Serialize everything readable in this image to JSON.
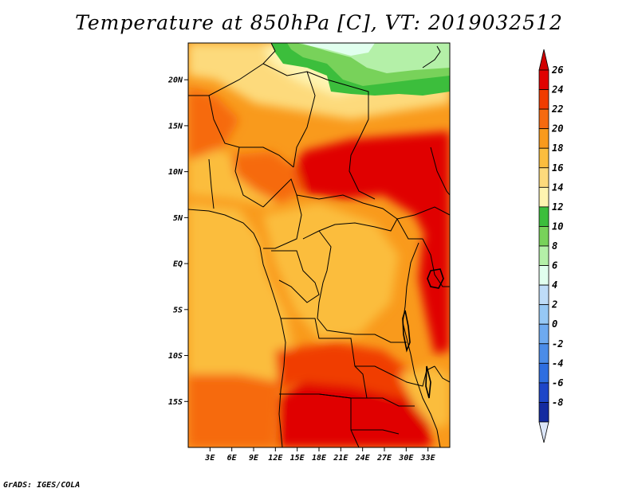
{
  "title": "Temperature at 850hPa [C], VT: 2019032512",
  "credit": "GrADS: IGES/COLA",
  "map": {
    "lon_range": [
      0,
      36
    ],
    "lat_range": [
      -20,
      24
    ],
    "lon_ticks": [
      {
        "value": 3,
        "label": "3E"
      },
      {
        "value": 6,
        "label": "6E"
      },
      {
        "value": 9,
        "label": "9E"
      },
      {
        "value": 12,
        "label": "12E"
      },
      {
        "value": 15,
        "label": "15E"
      },
      {
        "value": 18,
        "label": "18E"
      },
      {
        "value": 21,
        "label": "21E"
      },
      {
        "value": 24,
        "label": "24E"
      },
      {
        "value": 27,
        "label": "27E"
      },
      {
        "value": 30,
        "label": "30E"
      },
      {
        "value": 33,
        "label": "33E"
      }
    ],
    "lat_ticks": [
      {
        "value": 20,
        "label": "20N"
      },
      {
        "value": 15,
        "label": "15N"
      },
      {
        "value": 10,
        "label": "10N"
      },
      {
        "value": 5,
        "label": "5N"
      },
      {
        "value": 0,
        "label": "EQ"
      },
      {
        "value": -5,
        "label": "5S"
      },
      {
        "value": -10,
        "label": "10S"
      },
      {
        "value": -15,
        "label": "15S"
      }
    ]
  },
  "colorbar": {
    "levels": [
      {
        "label": "26",
        "color": "#e00000"
      },
      {
        "label": "24",
        "color": "#f03c00"
      },
      {
        "label": "22",
        "color": "#f66a10"
      },
      {
        "label": "20",
        "color": "#f99a1c"
      },
      {
        "label": "18",
        "color": "#fbbd3e"
      },
      {
        "label": "16",
        "color": "#fdda7c"
      },
      {
        "label": "14",
        "color": "#fef4b0"
      },
      {
        "label": "12",
        "color": "#3cbe3c"
      },
      {
        "label": "10",
        "color": "#78d25a"
      },
      {
        "label": "8",
        "color": "#b4f0a8"
      },
      {
        "label": "6",
        "color": "#e1ffee"
      },
      {
        "label": "4",
        "color": "#bedcf8"
      },
      {
        "label": "2",
        "color": "#96c8f5"
      },
      {
        "label": "0",
        "color": "#6eaaf0"
      },
      {
        "label": "-2",
        "color": "#4b8ce8"
      },
      {
        "label": "-4",
        "color": "#2e6ee0"
      },
      {
        "label": "-6",
        "color": "#1e46c8"
      },
      {
        "label": "-8",
        "color": "#142ba0"
      }
    ],
    "top_color": "#d20000",
    "bottom_color": "#dce6f8",
    "extra_color": "#0a1478"
  }
}
